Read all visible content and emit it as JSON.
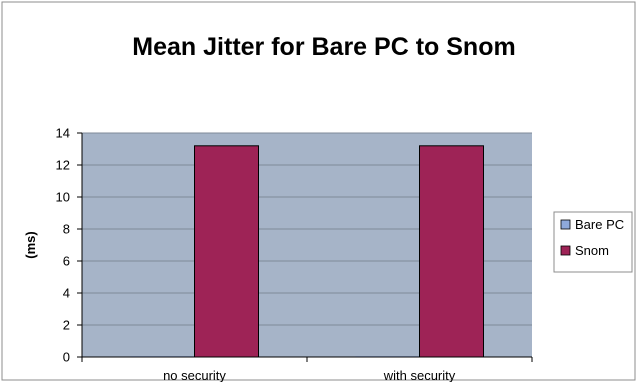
{
  "chart_data": {
    "type": "bar",
    "title": "Mean Jitter for Bare PC to Snom",
    "xlabel": "",
    "ylabel": "(ms)",
    "ylim": [
      0,
      14
    ],
    "yticks": [
      0,
      2,
      4,
      6,
      8,
      10,
      12,
      14
    ],
    "categories": [
      "no security",
      "with security"
    ],
    "series": [
      {
        "name": "Bare PC",
        "values": [
          0.05,
          0.05
        ],
        "color": "#8EA9DB"
      },
      {
        "name": "Snom",
        "values": [
          13.2,
          13.2
        ],
        "color": "#9E2356"
      }
    ],
    "grid": true,
    "legend": "right",
    "plot_background": "#A6B4C8"
  }
}
